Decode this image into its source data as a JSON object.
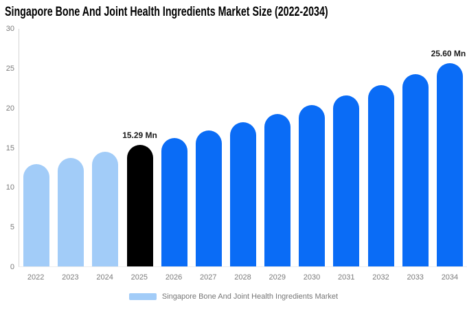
{
  "title": "Singapore Bone And Joint Health Ingredients Market Size (2022-2034)",
  "legend": {
    "label": "Singapore Bone And Joint Health Ingredients Market",
    "swatch_color": "#a2ccf8"
  },
  "colors": {
    "historical": "#a2ccf8",
    "base_year": "#000000",
    "forecast": "#0a6cf6",
    "axis_text": "#7a7a7a",
    "axis_line": "#d4d4d4",
    "annotation_text": "#1a1a1a"
  },
  "chart_data": {
    "type": "bar",
    "title": "Singapore Bone And Joint Health Ingredients Market Size (2022-2034)",
    "xlabel": "",
    "ylabel": "",
    "categories": [
      "2022",
      "2023",
      "2024",
      "2025",
      "2026",
      "2027",
      "2028",
      "2029",
      "2030",
      "2031",
      "2032",
      "2033",
      "2034"
    ],
    "values": [
      12.88,
      13.64,
      14.44,
      15.29,
      16.19,
      17.14,
      18.15,
      19.22,
      20.35,
      21.55,
      22.82,
      24.17,
      25.6
    ],
    "unit": "Mn",
    "bar_color_keys": [
      "historical",
      "historical",
      "historical",
      "base_year",
      "forecast",
      "forecast",
      "forecast",
      "forecast",
      "forecast",
      "forecast",
      "forecast",
      "forecast",
      "forecast"
    ],
    "annotations": [
      {
        "category": "2025",
        "text": "15.29 Mn"
      },
      {
        "category": "2034",
        "text": "25.60 Mn"
      }
    ],
    "ylim": [
      0,
      30
    ],
    "yticks": [
      0,
      5,
      10,
      15,
      20,
      25,
      30
    ],
    "grid": false,
    "legend_position": "bottom",
    "legend_entries": [
      "Singapore Bone And Joint Health Ingredients Market"
    ]
  }
}
